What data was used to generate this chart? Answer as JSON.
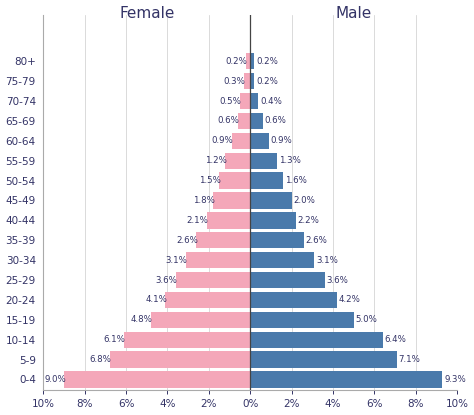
{
  "age_groups": [
    "0-4",
    "5-9",
    "10-14",
    "15-19",
    "20-24",
    "25-29",
    "30-34",
    "35-39",
    "40-44",
    "45-49",
    "50-54",
    "55-59",
    "60-64",
    "65-69",
    "70-74",
    "75-79",
    "80+"
  ],
  "female": [
    9.0,
    6.8,
    6.1,
    4.8,
    4.1,
    3.6,
    3.1,
    2.6,
    2.1,
    1.8,
    1.5,
    1.2,
    0.9,
    0.6,
    0.5,
    0.3,
    0.2
  ],
  "male": [
    9.3,
    7.1,
    6.4,
    5.0,
    4.2,
    3.6,
    3.1,
    2.6,
    2.2,
    2.0,
    1.6,
    1.3,
    0.9,
    0.6,
    0.4,
    0.2,
    0.2
  ],
  "female_labels": [
    "9.0%",
    "6.8%",
    "6.1%",
    "4.8%",
    "4.1%",
    "3.6%",
    "3.1%",
    "2.6%",
    "2.1%",
    "1.8%",
    "1.5%",
    "1.2%",
    "0.9%",
    "0.6%",
    "0.5%",
    "0.3%",
    "0.2%"
  ],
  "male_labels": [
    "9.3%",
    "7.1%",
    "6.4%",
    "5.0%",
    "4.2%",
    "3.6%",
    "3.1%",
    "2.6%",
    "2.2%",
    "2.0%",
    "1.6%",
    "1.3%",
    "0.9%",
    "0.6%",
    "0.4%",
    "0.2%",
    "0.2%"
  ],
  "female_color": "#f4a7b9",
  "male_color": "#4a7aab",
  "female_title": "Female",
  "male_title": "Male",
  "xlim": 10,
  "bar_height": 0.82,
  "label_fontsize": 6.2,
  "title_fontsize": 11,
  "tick_fontsize": 7.5,
  "ytick_fontsize": 7.5,
  "spine_color": "#aaaaaa",
  "center_line_color": "#444444",
  "text_color": "#333366"
}
